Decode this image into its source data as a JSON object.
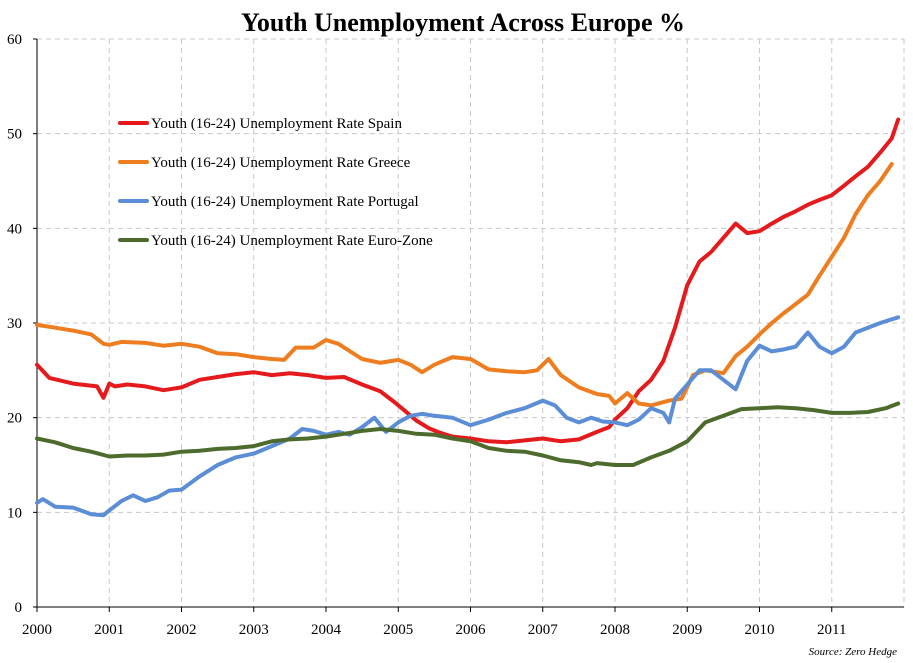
{
  "chart_data": {
    "type": "line",
    "title": "Youth Unemployment Across Europe %",
    "source": "Source: Zero Hedge",
    "xlabel": "",
    "ylabel": "",
    "xlim": [
      2000.0,
      2012.0
    ],
    "ylim": [
      0,
      60
    ],
    "grid": true,
    "legend_position": "top-left",
    "x_ticks": [
      "2000",
      "2001",
      "2002",
      "2003",
      "2004",
      "2005",
      "2006",
      "2007",
      "2008",
      "2009",
      "2010",
      "2011"
    ],
    "y_ticks": [
      "0",
      "10",
      "20",
      "30",
      "40",
      "50",
      "60"
    ],
    "series": [
      {
        "name": "Youth (16-24) Unemployment Rate Spain",
        "color": "#e41a1c",
        "x": [
          2000.0,
          2000.17,
          2000.5,
          2000.83,
          2000.92,
          2001.0,
          2001.08,
          2001.25,
          2001.5,
          2001.75,
          2002.0,
          2002.25,
          2002.5,
          2002.75,
          2003.0,
          2003.25,
          2003.5,
          2003.75,
          2004.0,
          2004.25,
          2004.5,
          2004.75,
          2004.92,
          2005.08,
          2005.25,
          2005.42,
          2005.58,
          2005.75,
          2006.0,
          2006.25,
          2006.5,
          2006.75,
          2007.0,
          2007.25,
          2007.5,
          2007.75,
          2007.92,
          2008.0,
          2008.17,
          2008.33,
          2008.5,
          2008.67,
          2008.83,
          2009.0,
          2009.17,
          2009.33,
          2009.5,
          2009.67,
          2009.83,
          2010.0,
          2010.17,
          2010.33,
          2010.5,
          2010.67,
          2010.83,
          2011.0,
          2011.17,
          2011.33,
          2011.5,
          2011.67,
          2011.83,
          2011.92
        ],
        "values": [
          25.6,
          24.2,
          23.6,
          23.3,
          22.1,
          23.6,
          23.3,
          23.5,
          23.3,
          22.9,
          23.2,
          24.0,
          24.3,
          24.6,
          24.8,
          24.5,
          24.7,
          24.5,
          24.2,
          24.3,
          23.5,
          22.8,
          21.8,
          20.8,
          19.7,
          18.9,
          18.4,
          18.0,
          17.8,
          17.5,
          17.4,
          17.6,
          17.8,
          17.5,
          17.7,
          18.5,
          19.0,
          19.8,
          21.0,
          22.8,
          24.0,
          26.0,
          29.5,
          34.0,
          36.5,
          37.5,
          39.0,
          40.5,
          39.5,
          39.7,
          40.5,
          41.2,
          41.8,
          42.5,
          43.0,
          43.5,
          44.5,
          45.5,
          46.5,
          48.0,
          49.5,
          51.5
        ]
      },
      {
        "name": "Youth (16-24) Unemployment Rate Greece",
        "color": "#ed7d1f",
        "x": [
          2000.0,
          2000.25,
          2000.5,
          2000.75,
          2000.92,
          2001.0,
          2001.17,
          2001.5,
          2001.75,
          2002.0,
          2002.25,
          2002.5,
          2002.75,
          2003.0,
          2003.25,
          2003.42,
          2003.58,
          2003.83,
          2004.0,
          2004.17,
          2004.5,
          2004.75,
          2005.0,
          2005.17,
          2005.33,
          2005.5,
          2005.75,
          2006.0,
          2006.25,
          2006.5,
          2006.75,
          2006.92,
          2007.08,
          2007.25,
          2007.5,
          2007.75,
          2007.92,
          2008.0,
          2008.17,
          2008.33,
          2008.5,
          2008.75,
          2008.92,
          2009.08,
          2009.25,
          2009.5,
          2009.67,
          2009.83,
          2010.0,
          2010.17,
          2010.33,
          2010.5,
          2010.67,
          2010.83,
          2011.0,
          2011.17,
          2011.33,
          2011.5,
          2011.67,
          2011.83
        ],
        "values": [
          29.8,
          29.5,
          29.2,
          28.8,
          27.8,
          27.7,
          28.0,
          27.9,
          27.6,
          27.8,
          27.5,
          26.8,
          26.7,
          26.4,
          26.2,
          26.1,
          27.4,
          27.4,
          28.2,
          27.8,
          26.2,
          25.8,
          26.1,
          25.6,
          24.8,
          25.6,
          26.4,
          26.2,
          25.1,
          24.9,
          24.8,
          25.0,
          26.2,
          24.5,
          23.2,
          22.5,
          22.3,
          21.5,
          22.6,
          21.5,
          21.3,
          21.8,
          22.0,
          24.5,
          25.0,
          24.7,
          26.5,
          27.5,
          28.8,
          30.0,
          31.0,
          32.0,
          33.0,
          35.0,
          37.0,
          39.0,
          41.5,
          43.5,
          45.0,
          46.8
        ]
      },
      {
        "name": "Youth (16-24) Unemployment Rate Portugal",
        "color": "#5b8ed6",
        "x": [
          2000.0,
          2000.08,
          2000.25,
          2000.5,
          2000.75,
          2000.92,
          2001.0,
          2001.17,
          2001.33,
          2001.5,
          2001.67,
          2001.83,
          2002.0,
          2002.25,
          2002.5,
          2002.75,
          2003.0,
          2003.25,
          2003.5,
          2003.67,
          2003.83,
          2004.0,
          2004.17,
          2004.33,
          2004.5,
          2004.67,
          2004.83,
          2005.0,
          2005.17,
          2005.33,
          2005.5,
          2005.75,
          2006.0,
          2006.25,
          2006.5,
          2006.75,
          2007.0,
          2007.17,
          2007.33,
          2007.5,
          2007.67,
          2007.83,
          2008.0,
          2008.17,
          2008.33,
          2008.5,
          2008.67,
          2008.75,
          2008.83,
          2009.0,
          2009.17,
          2009.33,
          2009.5,
          2009.67,
          2009.83,
          2010.0,
          2010.17,
          2010.33,
          2010.5,
          2010.67,
          2010.83,
          2011.0,
          2011.17,
          2011.33,
          2011.5,
          2011.67,
          2011.92
        ],
        "values": [
          11.0,
          11.4,
          10.6,
          10.5,
          9.8,
          9.7,
          10.2,
          11.2,
          11.8,
          11.2,
          11.6,
          12.3,
          12.4,
          13.8,
          15.0,
          15.8,
          16.2,
          17.0,
          17.8,
          18.8,
          18.6,
          18.2,
          18.5,
          18.2,
          19.0,
          20.0,
          18.5,
          19.5,
          20.2,
          20.4,
          20.2,
          20.0,
          19.2,
          19.8,
          20.5,
          21.0,
          21.8,
          21.3,
          20.0,
          19.5,
          20.0,
          19.6,
          19.5,
          19.2,
          19.8,
          21.0,
          20.5,
          19.5,
          22.0,
          23.5,
          25.0,
          25.0,
          24.0,
          23.0,
          26.0,
          27.6,
          27.0,
          27.2,
          27.5,
          29.0,
          27.5,
          26.8,
          27.5,
          29.0,
          29.5,
          30.0,
          30.6
        ]
      },
      {
        "name": "Youth (16-24) Unemployment Rate Euro-Zone",
        "color": "#4e6b2e",
        "x": [
          2000.0,
          2000.25,
          2000.5,
          2000.75,
          2001.0,
          2001.25,
          2001.5,
          2001.75,
          2002.0,
          2002.25,
          2002.5,
          2002.75,
          2003.0,
          2003.25,
          2003.5,
          2003.75,
          2004.0,
          2004.25,
          2004.5,
          2004.75,
          2005.0,
          2005.25,
          2005.5,
          2005.75,
          2006.0,
          2006.25,
          2006.5,
          2006.75,
          2007.0,
          2007.25,
          2007.5,
          2007.67,
          2007.75,
          2008.0,
          2008.25,
          2008.5,
          2008.75,
          2009.0,
          2009.25,
          2009.5,
          2009.75,
          2010.0,
          2010.25,
          2010.5,
          2010.75,
          2011.0,
          2011.25,
          2011.5,
          2011.75,
          2011.92
        ],
        "values": [
          17.8,
          17.4,
          16.8,
          16.4,
          15.9,
          16.0,
          16.0,
          16.1,
          16.4,
          16.5,
          16.7,
          16.8,
          17.0,
          17.5,
          17.7,
          17.8,
          18.0,
          18.3,
          18.6,
          18.8,
          18.6,
          18.3,
          18.2,
          17.8,
          17.5,
          16.8,
          16.5,
          16.4,
          16.0,
          15.5,
          15.3,
          15.0,
          15.2,
          15.0,
          15.0,
          15.8,
          16.5,
          17.5,
          19.5,
          20.2,
          20.9,
          21.0,
          21.1,
          21.0,
          20.8,
          20.5,
          20.5,
          20.6,
          21.0,
          21.5
        ]
      }
    ]
  }
}
